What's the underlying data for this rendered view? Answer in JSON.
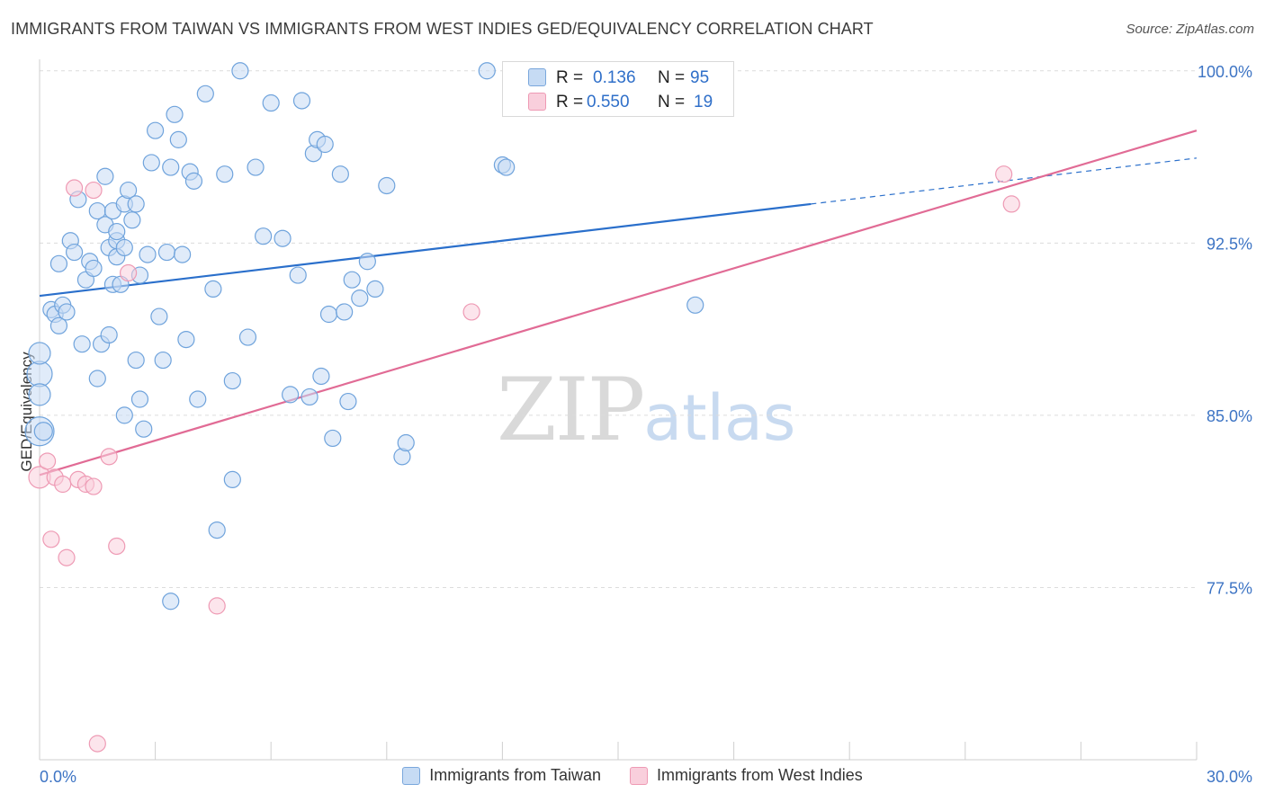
{
  "chart_data": {
    "type": "scatter",
    "title": "IMMIGRANTS FROM TAIWAN VS IMMIGRANTS FROM WEST INDIES GED/EQUIVALENCY CORRELATION CHART",
    "source": "Source: ZipAtlas.com",
    "ylabel": "GED/Equivalency",
    "xlabel": "",
    "xlim": [
      0,
      30
    ],
    "ylim": [
      70,
      100.5
    ],
    "x_tick_labels": {
      "left": "0.0%",
      "right": "30.0%"
    },
    "y_ticks": [
      {
        "value": 100.0,
        "label": "100.0%"
      },
      {
        "value": 92.5,
        "label": "92.5%"
      },
      {
        "value": 85.0,
        "label": "85.0%"
      },
      {
        "value": 77.5,
        "label": "77.5%"
      }
    ],
    "legend_position": "bottom",
    "watermark": {
      "zip": "ZIP",
      "atlas": "atlas"
    },
    "series": [
      {
        "name": "Immigrants from Taiwan",
        "color": "#6fa3dc",
        "fill": "#c6dbf4",
        "line_color": "#2a6fcb",
        "R": "0.136",
        "N": "95",
        "trend": {
          "x0": 0,
          "y0": 90.2,
          "x1": 20,
          "y1": 94.2,
          "dashed_to_x": 30,
          "dashed_to_y": 96.2
        },
        "points": [
          [
            0.0,
            84.3,
            16
          ],
          [
            0.0,
            86.8,
            14
          ],
          [
            0.0,
            85.9,
            12
          ],
          [
            0.0,
            87.7,
            12
          ],
          [
            0.1,
            84.3,
            10
          ],
          [
            0.3,
            89.6,
            9
          ],
          [
            0.4,
            89.4,
            9
          ],
          [
            0.5,
            88.9,
            9
          ],
          [
            0.6,
            89.8,
            9
          ],
          [
            0.7,
            89.5,
            9
          ],
          [
            0.5,
            91.6,
            9
          ],
          [
            0.8,
            92.6,
            9
          ],
          [
            0.9,
            92.1,
            9
          ],
          [
            1.0,
            94.4,
            9
          ],
          [
            1.1,
            88.1,
            9
          ],
          [
            1.2,
            90.9,
            9
          ],
          [
            1.3,
            91.7,
            9
          ],
          [
            1.4,
            91.4,
            9
          ],
          [
            1.5,
            93.9,
            9
          ],
          [
            1.6,
            88.1,
            9
          ],
          [
            1.5,
            86.6,
            9
          ],
          [
            1.7,
            93.3,
            9
          ],
          [
            1.8,
            88.5,
            9
          ],
          [
            1.9,
            93.9,
            9
          ],
          [
            1.7,
            95.4,
            9
          ],
          [
            1.8,
            92.3,
            9
          ],
          [
            1.9,
            90.7,
            9
          ],
          [
            2.0,
            92.6,
            9
          ],
          [
            2.0,
            91.9,
            9
          ],
          [
            2.1,
            90.7,
            9
          ],
          [
            2.0,
            93.0,
            9
          ],
          [
            2.2,
            94.2,
            9
          ],
          [
            2.2,
            92.3,
            9
          ],
          [
            2.3,
            94.8,
            9
          ],
          [
            2.4,
            93.5,
            9
          ],
          [
            2.5,
            94.2,
            9
          ],
          [
            2.6,
            91.1,
            9
          ],
          [
            2.5,
            87.4,
            9
          ],
          [
            2.6,
            85.7,
            9
          ],
          [
            2.2,
            85.0,
            9
          ],
          [
            2.7,
            84.4,
            9
          ],
          [
            2.8,
            92.0,
            9
          ],
          [
            2.9,
            96.0,
            9
          ],
          [
            3.0,
            97.4,
            9
          ],
          [
            3.1,
            89.3,
            9
          ],
          [
            3.2,
            87.4,
            9
          ],
          [
            3.3,
            92.1,
            9
          ],
          [
            3.4,
            95.8,
            9
          ],
          [
            3.5,
            98.1,
            9
          ],
          [
            3.6,
            97.0,
            9
          ],
          [
            3.7,
            92.0,
            9
          ],
          [
            3.8,
            88.3,
            9
          ],
          [
            3.9,
            95.6,
            9
          ],
          [
            4.0,
            95.2,
            9
          ],
          [
            4.1,
            85.7,
            9
          ],
          [
            4.3,
            99.0,
            9
          ],
          [
            4.5,
            90.5,
            9
          ],
          [
            4.6,
            80.0,
            9
          ],
          [
            3.4,
            76.9,
            9
          ],
          [
            4.8,
            95.5,
            9
          ],
          [
            5.0,
            86.5,
            9
          ],
          [
            5.0,
            82.2,
            9
          ],
          [
            5.2,
            100.0,
            9
          ],
          [
            5.4,
            88.4,
            9
          ],
          [
            5.6,
            95.8,
            9
          ],
          [
            5.8,
            92.8,
            9
          ],
          [
            6.0,
            98.6,
            9
          ],
          [
            6.3,
            92.7,
            9
          ],
          [
            6.5,
            85.9,
            9
          ],
          [
            6.7,
            91.1,
            9
          ],
          [
            6.8,
            98.7,
            9
          ],
          [
            7.0,
            85.8,
            9
          ],
          [
            7.1,
            96.4,
            9
          ],
          [
            7.2,
            97.0,
            9
          ],
          [
            7.3,
            86.7,
            9
          ],
          [
            7.4,
            96.8,
            9
          ],
          [
            7.5,
            89.4,
            9
          ],
          [
            7.6,
            84.0,
            9
          ],
          [
            7.8,
            95.5,
            9
          ],
          [
            7.9,
            89.5,
            9
          ],
          [
            8.0,
            85.6,
            9
          ],
          [
            8.1,
            90.9,
            9
          ],
          [
            8.3,
            90.1,
            9
          ],
          [
            8.5,
            91.7,
            9
          ],
          [
            8.7,
            90.5,
            9
          ],
          [
            9.0,
            95.0,
            9
          ],
          [
            9.4,
            83.2,
            9
          ],
          [
            9.5,
            83.8,
            9
          ],
          [
            11.6,
            100.0,
            9
          ],
          [
            12.0,
            95.9,
            9
          ],
          [
            12.1,
            95.8,
            9
          ],
          [
            17.0,
            89.8,
            9
          ]
        ]
      },
      {
        "name": "Immigrants from West Indies",
        "color": "#ee9ab4",
        "fill": "#f9cfdc",
        "line_color": "#e16b95",
        "R": "0.550",
        "N": "19",
        "trend": {
          "x0": 0,
          "y0": 82.4,
          "x1": 30,
          "y1": 97.4
        },
        "points": [
          [
            0.0,
            82.3,
            12
          ],
          [
            0.2,
            83.0,
            9
          ],
          [
            0.4,
            82.3,
            9
          ],
          [
            0.6,
            82.0,
            9
          ],
          [
            1.0,
            82.2,
            9
          ],
          [
            1.2,
            82.0,
            9
          ],
          [
            1.4,
            81.9,
            9
          ],
          [
            0.3,
            79.6,
            9
          ],
          [
            0.7,
            78.8,
            9
          ],
          [
            0.9,
            94.9,
            9
          ],
          [
            1.4,
            94.8,
            9
          ],
          [
            1.8,
            83.2,
            9
          ],
          [
            2.0,
            79.3,
            9
          ],
          [
            2.3,
            91.2,
            9
          ],
          [
            4.6,
            76.7,
            9
          ],
          [
            1.5,
            70.7,
            9
          ],
          [
            11.2,
            89.5,
            9
          ],
          [
            25.0,
            95.5,
            9
          ],
          [
            25.2,
            94.2,
            9
          ]
        ]
      }
    ]
  }
}
